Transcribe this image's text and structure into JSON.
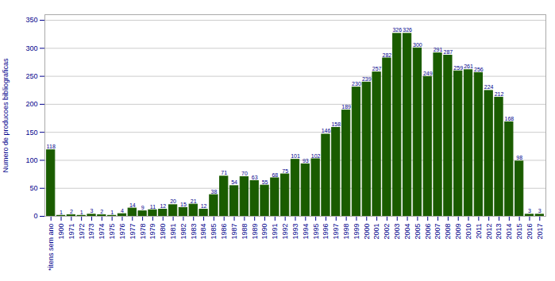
{
  "chart_data": {
    "type": "bar",
    "categories": [
      "*itens sem ano",
      "1900",
      "1971",
      "1972",
      "1973",
      "1974",
      "1975",
      "1976",
      "1977",
      "1978",
      "1979",
      "1980",
      "1981",
      "1982",
      "1983",
      "1984",
      "1985",
      "1986",
      "1987",
      "1988",
      "1989",
      "1990",
      "1991",
      "1992",
      "1993",
      "1994",
      "1995",
      "1996",
      "1997",
      "1998",
      "1999",
      "2000",
      "2001",
      "2002",
      "2003",
      "2004",
      "2005",
      "2006",
      "2007",
      "2008",
      "2009",
      "2010",
      "2011",
      "2012",
      "2013",
      "2014",
      "2015",
      "2016",
      "2017"
    ],
    "values": [
      118,
      1,
      2,
      1,
      3,
      2,
      1,
      4,
      14,
      9,
      11,
      12,
      20,
      15,
      21,
      12,
      38,
      71,
      54,
      70,
      63,
      55,
      68,
      75,
      101,
      93,
      102,
      146,
      158,
      189,
      230,
      239,
      257,
      282,
      326,
      326,
      300,
      249,
      291,
      287,
      259,
      261,
      256,
      224,
      212,
      168,
      98,
      3,
      3
    ],
    "color": "#1a5c00",
    "ylabel": "Numero de producoes bibliograficas",
    "ylim": [
      0,
      360
    ],
    "yticks": [
      0,
      50,
      100,
      150,
      200,
      250,
      300,
      350
    ],
    "grid": true,
    "data_labels": true
  }
}
